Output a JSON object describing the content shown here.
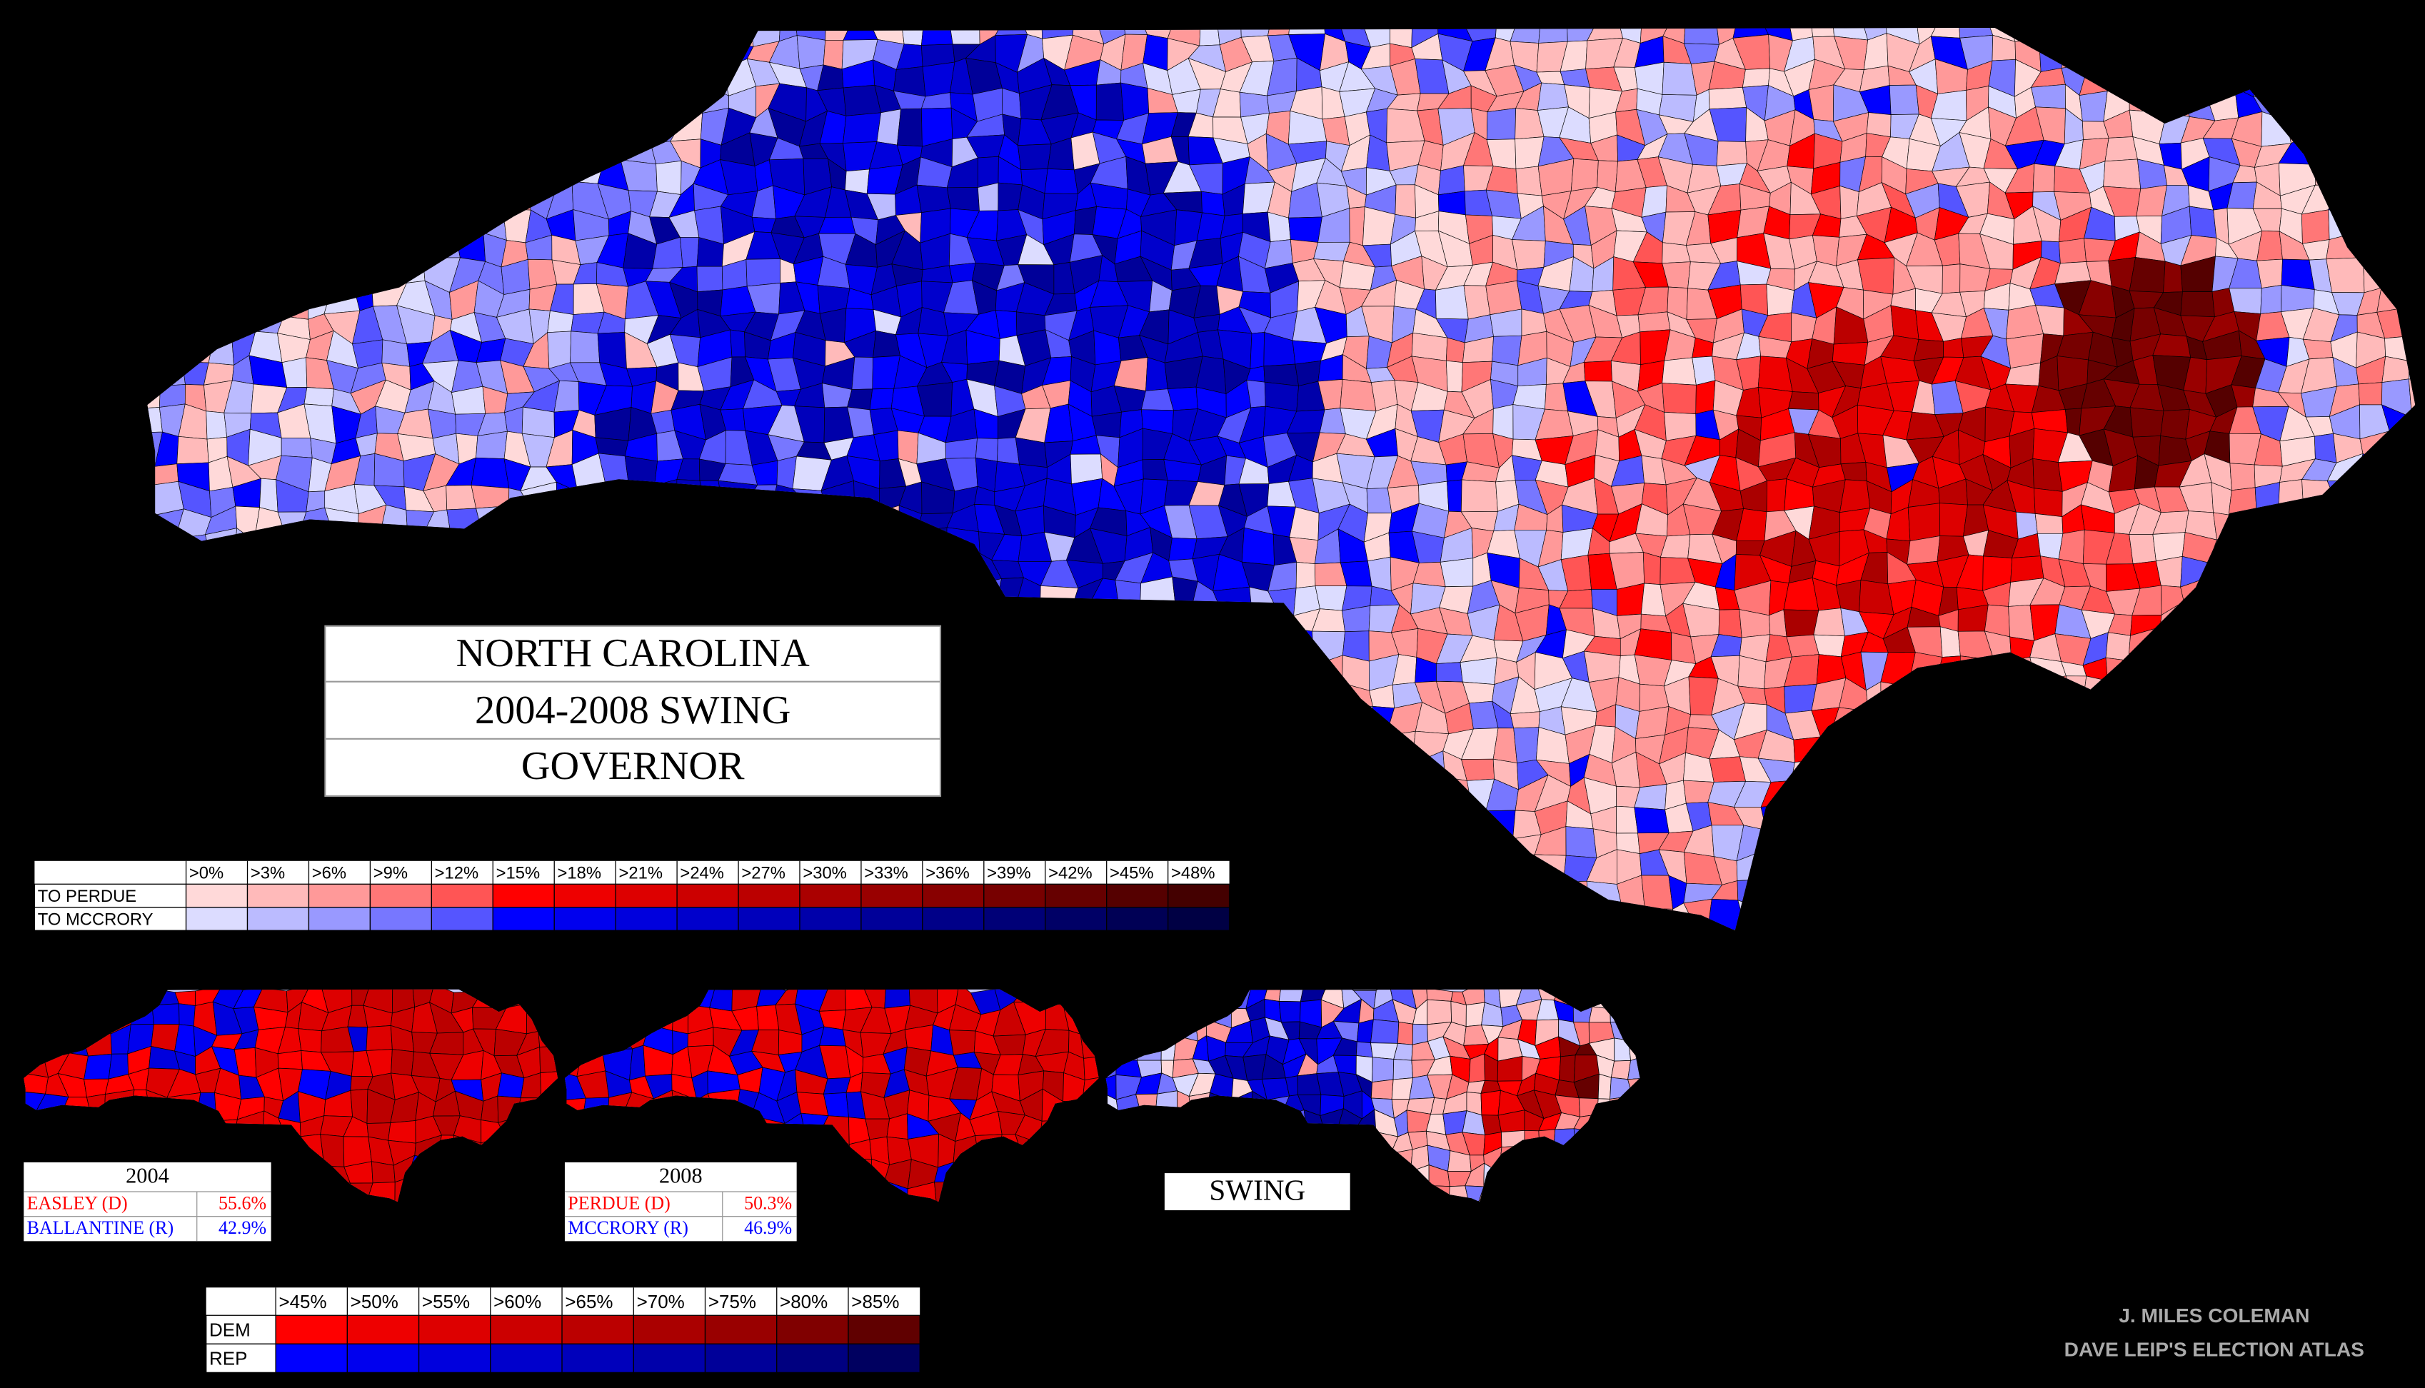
{
  "title": {
    "lines": [
      "NORTH CAROLINA",
      "2004-2008 SWING",
      "GOVERNOR"
    ]
  },
  "swing_legend": {
    "headers": [
      ">0%",
      ">3%",
      ">6%",
      ">9%",
      ">12%",
      ">15%",
      ">18%",
      ">21%",
      ">24%",
      ">27%",
      ">30%",
      ">33%",
      ">36%",
      ">39%",
      ">42%",
      ">45%",
      ">48%"
    ],
    "rows": [
      {
        "label": "TO PERDUE",
        "colors": [
          "#ffd9d9",
          "#ffbaba",
          "#ff9999",
          "#ff7777",
          "#ff5555",
          "#ff0000",
          "#ee0000",
          "#dd0000",
          "#cc0000",
          "#bb0000",
          "#aa0000",
          "#990000",
          "#880000",
          "#770000",
          "#660000",
          "#550000",
          "#440000"
        ]
      },
      {
        "label": "TO MCCRORY",
        "colors": [
          "#dcdcff",
          "#bbbbff",
          "#9999ff",
          "#7777ff",
          "#5555ff",
          "#0000ff",
          "#0000ee",
          "#0000dd",
          "#0000cc",
          "#0000bb",
          "#0000aa",
          "#000099",
          "#000088",
          "#000077",
          "#000066",
          "#000055",
          "#000044"
        ]
      }
    ]
  },
  "results": [
    {
      "year": "2004",
      "rows": [
        {
          "name": "EASLEY (D)",
          "pct": "55.6%",
          "color": "#ff0000"
        },
        {
          "name": "BALLANTINE (R)",
          "pct": "42.9%",
          "color": "#0000ff"
        }
      ]
    },
    {
      "year": "2008",
      "rows": [
        {
          "name": "PERDUE (D)",
          "pct": "50.3%",
          "color": "#ff0000"
        },
        {
          "name": "MCCRORY (R)",
          "pct": "46.9%",
          "color": "#0000ff"
        }
      ]
    }
  ],
  "swing_label": "SWING",
  "margin_legend": {
    "headers": [
      ">45%",
      ">50%",
      ">55%",
      ">60%",
      ">65%",
      ">70%",
      ">75%",
      ">80%",
      ">85%"
    ],
    "rows": [
      {
        "label": "DEM",
        "colors": [
          "#ff0000",
          "#ee0000",
          "#dd0000",
          "#cc0000",
          "#bb0000",
          "#aa0000",
          "#990000",
          "#800000",
          "#600000"
        ]
      },
      {
        "label": "REP",
        "colors": [
          "#0000ff",
          "#0000ee",
          "#0000dd",
          "#0000cc",
          "#0000bb",
          "#0000aa",
          "#000099",
          "#000080",
          "#000060"
        ]
      }
    ]
  },
  "credits": [
    "J. MILES COLEMAN",
    "DAVE LEIP'S ELECTION ATLAS"
  ]
}
